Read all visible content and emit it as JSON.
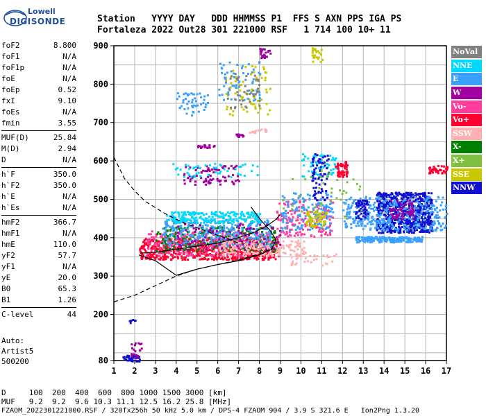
{
  "logo": {
    "line1": "Lowell",
    "line2": "DIGISONDE"
  },
  "header": {
    "line1": "Station   YYYY DAY   DDD HHMMSS P1  FFS S AXN PPS IGA PS",
    "line2": "Fortaleza 2022 Out28 301 221000 RSF   1 714 100 10+ 11"
  },
  "params": [
    {
      "label": "foF2",
      "value": "8.800"
    },
    {
      "label": "foF1",
      "value": "N/A"
    },
    {
      "label": "foF1p",
      "value": "N/A"
    },
    {
      "label": "foE",
      "value": "N/A"
    },
    {
      "label": "foEp",
      "value": "0.52"
    },
    {
      "label": "fxI",
      "value": "9.10"
    },
    {
      "label": "foEs",
      "value": "N/A"
    },
    {
      "label": "fmin",
      "value": "3.55"
    },
    {
      "label": "MUF(D)",
      "value": "25.84"
    },
    {
      "label": "M(D)",
      "value": "2.94"
    },
    {
      "label": "D",
      "value": "N/A"
    },
    {
      "label": "h`F",
      "value": "350.0"
    },
    {
      "label": "h`F2",
      "value": "350.0"
    },
    {
      "label": "h`E",
      "value": "N/A"
    },
    {
      "label": "h`Es",
      "value": "N/A"
    },
    {
      "label": "hmF2",
      "value": "366.7"
    },
    {
      "label": "hmF1",
      "value": "N/A"
    },
    {
      "label": "hmE",
      "value": "110.0"
    },
    {
      "label": "yF2",
      "value": "57.7"
    },
    {
      "label": "yF1",
      "value": "N/A"
    },
    {
      "label": "yE",
      "value": "20.0"
    },
    {
      "label": "B0",
      "value": "65.3"
    },
    {
      "label": "B1",
      "value": "1.26"
    },
    {
      "label": "C-level",
      "value": "44"
    }
  ],
  "auto": {
    "line1": "Auto:",
    "line2": "Artist5",
    "line3": "500200"
  },
  "legend": [
    {
      "label": "NoVal",
      "color": "#808080"
    },
    {
      "label": "NNE",
      "color": "#00d8ff"
    },
    {
      "label": "E",
      "color": "#3aa0ff"
    },
    {
      "label": "W",
      "color": "#a000a0"
    },
    {
      "label": "Vo-",
      "color": "#ff3c9c"
    },
    {
      "label": "Vo+",
      "color": "#ff0030"
    },
    {
      "label": "SSW",
      "color": "#ffb0b0"
    },
    {
      "label": "X-",
      "color": "#008000"
    },
    {
      "label": "X+",
      "color": "#80c040"
    },
    {
      "label": "SSE",
      "color": "#c8c800"
    },
    {
      "label": "NNW",
      "color": "#1010d0"
    }
  ],
  "chart_data": {
    "type": "scatter",
    "xlabel": "",
    "ylabel": "",
    "xlim": [
      1,
      17
    ],
    "ylim": [
      80,
      900
    ],
    "x_ticks": [
      "1",
      "2",
      "3",
      "4",
      "5",
      "6",
      "7",
      "8",
      "9",
      "10",
      "11",
      "12",
      "13",
      "14",
      "15",
      "16",
      "17"
    ],
    "y_ticks": [
      "80",
      "200",
      "300",
      "400",
      "500",
      "600",
      "700",
      "800",
      "900"
    ],
    "grid": true,
    "curves": {
      "profile_solid": [
        [
          2.2,
          355
        ],
        [
          3.0,
          340
        ],
        [
          4.0,
          302
        ],
        [
          5.0,
          318
        ],
        [
          6.0,
          330
        ],
        [
          7.0,
          340
        ],
        [
          8.0,
          355
        ],
        [
          8.6,
          370
        ],
        [
          8.8,
          395
        ],
        [
          8.5,
          420
        ],
        [
          8.0,
          450
        ],
        [
          7.6,
          480
        ]
      ],
      "model_dashed_upper": [
        [
          1.0,
          610
        ],
        [
          1.5,
          555
        ],
        [
          2.0,
          522
        ],
        [
          2.5,
          495
        ],
        [
          3.0,
          478
        ],
        [
          3.5,
          462
        ],
        [
          4.0,
          448
        ],
        [
          4.5,
          436
        ],
        [
          5.0,
          426
        ],
        [
          5.5,
          416
        ],
        [
          6.0,
          406
        ],
        [
          6.5,
          396
        ],
        [
          7.0,
          386
        ]
      ],
      "model_dashed_lower": [
        [
          1.0,
          233
        ],
        [
          2.0,
          250
        ],
        [
          3.0,
          275
        ],
        [
          4.0,
          300
        ],
        [
          5.0,
          318
        ],
        [
          6.0,
          330
        ],
        [
          7.0,
          342
        ],
        [
          8.0,
          358
        ],
        [
          8.6,
          372
        ]
      ],
      "trace_curve": [
        [
          2.3,
          360
        ],
        [
          3.0,
          362
        ],
        [
          4.0,
          370
        ],
        [
          5.0,
          378
        ],
        [
          6.0,
          386
        ],
        [
          7.0,
          400
        ],
        [
          7.8,
          415
        ],
        [
          8.4,
          432
        ],
        [
          8.8,
          448
        ],
        [
          9.0,
          460
        ]
      ]
    },
    "clusters": [
      {
        "color": "#ff0030",
        "xr": [
          2.2,
          8.9
        ],
        "yr": [
          345,
          400
        ],
        "n": 700
      },
      {
        "color": "#ff3c9c",
        "xr": [
          2.5,
          8.5
        ],
        "yr": [
          355,
          420
        ],
        "n": 300
      },
      {
        "color": "#008000",
        "xr": [
          3.0,
          8.8
        ],
        "yr": [
          365,
          430
        ],
        "n": 220
      },
      {
        "color": "#3aa0ff",
        "xr": [
          3.3,
          8.6
        ],
        "yr": [
          380,
          450
        ],
        "n": 320
      },
      {
        "color": "#00d8ff",
        "xr": [
          3.5,
          8.0
        ],
        "yr": [
          440,
          470
        ],
        "n": 220
      },
      {
        "color": "#ffb0b0",
        "xr": [
          6.0,
          10.2
        ],
        "yr": [
          355,
          395
        ],
        "n": 180
      },
      {
        "color": "#a000a0",
        "xr": [
          4.0,
          9.0
        ],
        "yr": [
          370,
          440
        ],
        "n": 100
      },
      {
        "color": "#ff3c9c",
        "xr": [
          8.8,
          11.5
        ],
        "yr": [
          405,
          500
        ],
        "n": 160
      },
      {
        "color": "#3aa0ff",
        "xr": [
          9.0,
          11.5
        ],
        "yr": [
          420,
          520
        ],
        "n": 140
      },
      {
        "color": "#c8c800",
        "xr": [
          10.2,
          11.2
        ],
        "yr": [
          430,
          470
        ],
        "n": 60
      },
      {
        "color": "#00d8ff",
        "xr": [
          10.0,
          11.7
        ],
        "yr": [
          560,
          620
        ],
        "n": 60
      },
      {
        "color": "#1010d0",
        "xr": [
          13.6,
          16.3
        ],
        "yr": [
          415,
          520
        ],
        "n": 700
      },
      {
        "color": "#3aa0ff",
        "xr": [
          12.0,
          17.0
        ],
        "yr": [
          420,
          510
        ],
        "n": 350
      },
      {
        "color": "#a000a0",
        "xr": [
          14.2,
          15.4
        ],
        "yr": [
          450,
          500
        ],
        "n": 60
      },
      {
        "color": "#3aa0ff",
        "xr": [
          12.6,
          15.8
        ],
        "yr": [
          390,
          405
        ],
        "n": 200
      },
      {
        "color": "#1010d0",
        "xr": [
          12.6,
          13.2
        ],
        "yr": [
          450,
          500
        ],
        "n": 60
      },
      {
        "color": "#ff0030",
        "xr": [
          11.6,
          12.2
        ],
        "yr": [
          560,
          600
        ],
        "n": 50
      },
      {
        "color": "#ff0030",
        "xr": [
          16.1,
          17.0
        ],
        "yr": [
          570,
          590
        ],
        "n": 40
      },
      {
        "color": "#1010d0",
        "xr": [
          10.5,
          11.3
        ],
        "yr": [
          500,
          620
        ],
        "n": 70
      },
      {
        "color": "#3aa0ff",
        "xr": [
          4.0,
          5.5
        ],
        "yr": [
          720,
          780
        ],
        "n": 50
      },
      {
        "color": "#c8c800",
        "xr": [
          6.3,
          8.5
        ],
        "yr": [
          720,
          850
        ],
        "n": 70
      },
      {
        "color": "#3aa0ff",
        "xr": [
          6.0,
          8.0
        ],
        "yr": [
          760,
          860
        ],
        "n": 60
      },
      {
        "color": "#808080",
        "xr": [
          6.4,
          8.0
        ],
        "yr": [
          740,
          830
        ],
        "n": 40
      },
      {
        "color": "#a000a0",
        "xr": [
          8.0,
          8.5
        ],
        "yr": [
          870,
          895
        ],
        "n": 25
      },
      {
        "color": "#c8c800",
        "xr": [
          10.5,
          11.0
        ],
        "yr": [
          860,
          900
        ],
        "n": 25
      },
      {
        "color": "#a000a0",
        "xr": [
          5.0,
          5.8
        ],
        "yr": [
          636,
          644
        ],
        "n": 20
      },
      {
        "color": "#a000a0",
        "xr": [
          6.8,
          7.2
        ],
        "yr": [
          665,
          672
        ],
        "n": 12
      },
      {
        "color": "#ffb0b0",
        "xr": [
          7.5,
          8.3
        ],
        "yr": [
          675,
          685
        ],
        "n": 18
      },
      {
        "color": "#a000a0",
        "xr": [
          4.3,
          7.0
        ],
        "yr": [
          540,
          590
        ],
        "n": 80
      },
      {
        "color": "#00d8ff",
        "xr": [
          3.8,
          8.0
        ],
        "yr": [
          560,
          595
        ],
        "n": 50
      },
      {
        "color": "#1010d0",
        "xr": [
          1.4,
          2.2
        ],
        "yr": [
          80,
          96
        ],
        "n": 40
      },
      {
        "color": "#a000a0",
        "xr": [
          1.8,
          2.3
        ],
        "yr": [
          85,
          130
        ],
        "n": 20
      },
      {
        "color": "#1010d0",
        "xr": [
          1.7,
          2.0
        ],
        "yr": [
          180,
          190
        ],
        "n": 6
      },
      {
        "color": "#80c040",
        "xr": [
          9.0,
          13.0
        ],
        "yr": [
          450,
          580
        ],
        "n": 40
      },
      {
        "color": "#ffb0b0",
        "xr": [
          9.5,
          12.0
        ],
        "yr": [
          330,
          360
        ],
        "n": 30
      }
    ]
  },
  "distance_rows": {
    "d_line": "D     100  200  400  600  800 1000 1500 3000 [km]",
    "muf_line": "MUF   9.2  9.2  9.6 10.3 11.1 12.5 16.2 25.8 [MHz]"
  },
  "footer": "FZAOM_2022301221000.RSF / 320fx256h 50 kHz 5.0 km / DPS-4 FZAOM 904 / 3.9 S 321.6 E   Ion2Png 1.3.20"
}
